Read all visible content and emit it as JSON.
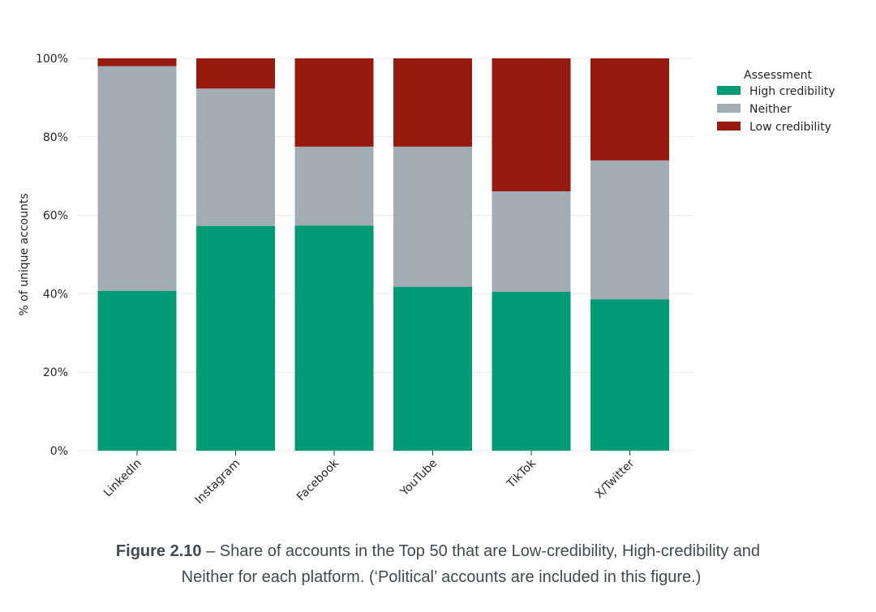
{
  "chart_data": {
    "type": "bar",
    "stacked": true,
    "normalized": true,
    "title": "",
    "xlabel": "",
    "ylabel": "% of unique accounts",
    "ylim": [
      0,
      100
    ],
    "yticks": [
      0,
      20,
      40,
      60,
      80,
      100
    ],
    "ytick_labels": [
      "0%",
      "20%",
      "40%",
      "60%",
      "80%",
      "100%"
    ],
    "grid": "horizontal",
    "categories": [
      "LinkedIn",
      "Instagram",
      "Facebook",
      "YouTube",
      "TikTok",
      "X/Twitter"
    ],
    "legend": {
      "title": "Assessment",
      "placement": "right",
      "entries": [
        "High credibility",
        "Neither",
        "Low credibility"
      ]
    },
    "series": [
      {
        "name": "High credibility",
        "color": "#009a74",
        "values": [
          40.7,
          57.3,
          57.4,
          41.8,
          40.5,
          38.6
        ]
      },
      {
        "name": "Neither",
        "color": "#a1acb5",
        "values": [
          57.3,
          35.0,
          20.1,
          35.7,
          25.6,
          35.4
        ]
      },
      {
        "name": "Low credibility",
        "color": "#961a0e",
        "values": [
          2.0,
          7.7,
          22.5,
          22.5,
          33.9,
          26.0
        ]
      }
    ]
  },
  "caption": {
    "label": "Figure 2.10",
    "line1": " – Share of accounts in the Top 50 that are Low-credibility, High-credibility and",
    "line2": "Neither for each platform. (‘Political’ accounts are included in this figure.)"
  }
}
